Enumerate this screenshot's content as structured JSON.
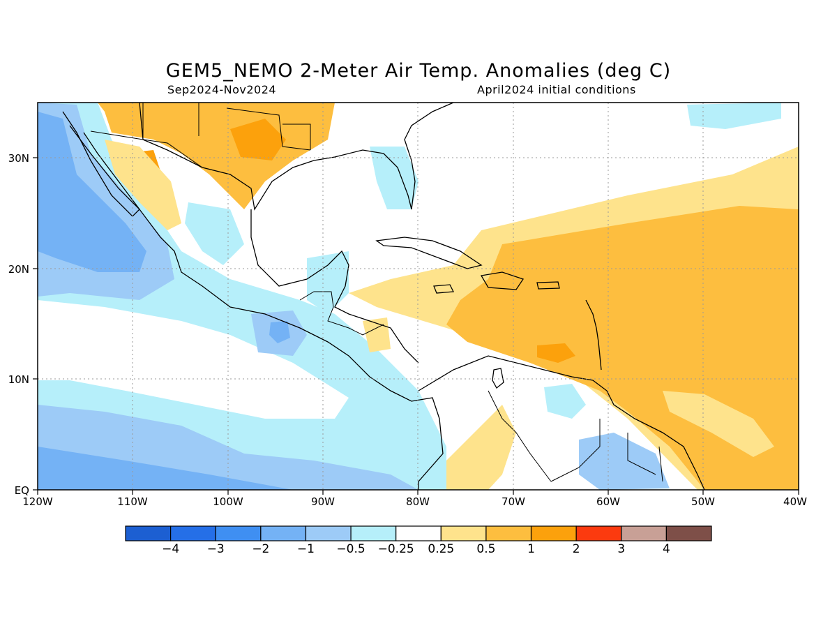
{
  "title": "GEM5_NEMO 2-Meter Air Temp. Anomalies (deg C)",
  "subtitle_left": "Sep2024-Nov2024",
  "subtitle_right": "April2024 initial conditions",
  "map": {
    "region": "Caribbean / Gulf of Mexico / Eastern Tropical Pacific",
    "lon_range": [
      -120,
      -40
    ],
    "lat_range": [
      0,
      35
    ],
    "grid": "dotted",
    "lon_ticks": [
      "120W",
      "110W",
      "100W",
      "90W",
      "80W",
      "70W",
      "60W",
      "50W",
      "40W"
    ],
    "lat_ticks": [
      "30N",
      "20N",
      "10N",
      "EQ"
    ]
  },
  "colorbar": {
    "colors": [
      "#1c5fd2",
      "#256fe7",
      "#3f8ff2",
      "#74b2f5",
      "#9dcbf7",
      "#b6effa",
      "#ffffff",
      "#fee38c",
      "#fdbe3f",
      "#fca10c",
      "#fc3a0f",
      "#c8a096",
      "#7e4f48"
    ],
    "labels": [
      "−4",
      "−3",
      "−2",
      "−1",
      "−0.5",
      "−0.25",
      "0.25",
      "0.5",
      "1",
      "2",
      "3",
      "4"
    ]
  }
}
